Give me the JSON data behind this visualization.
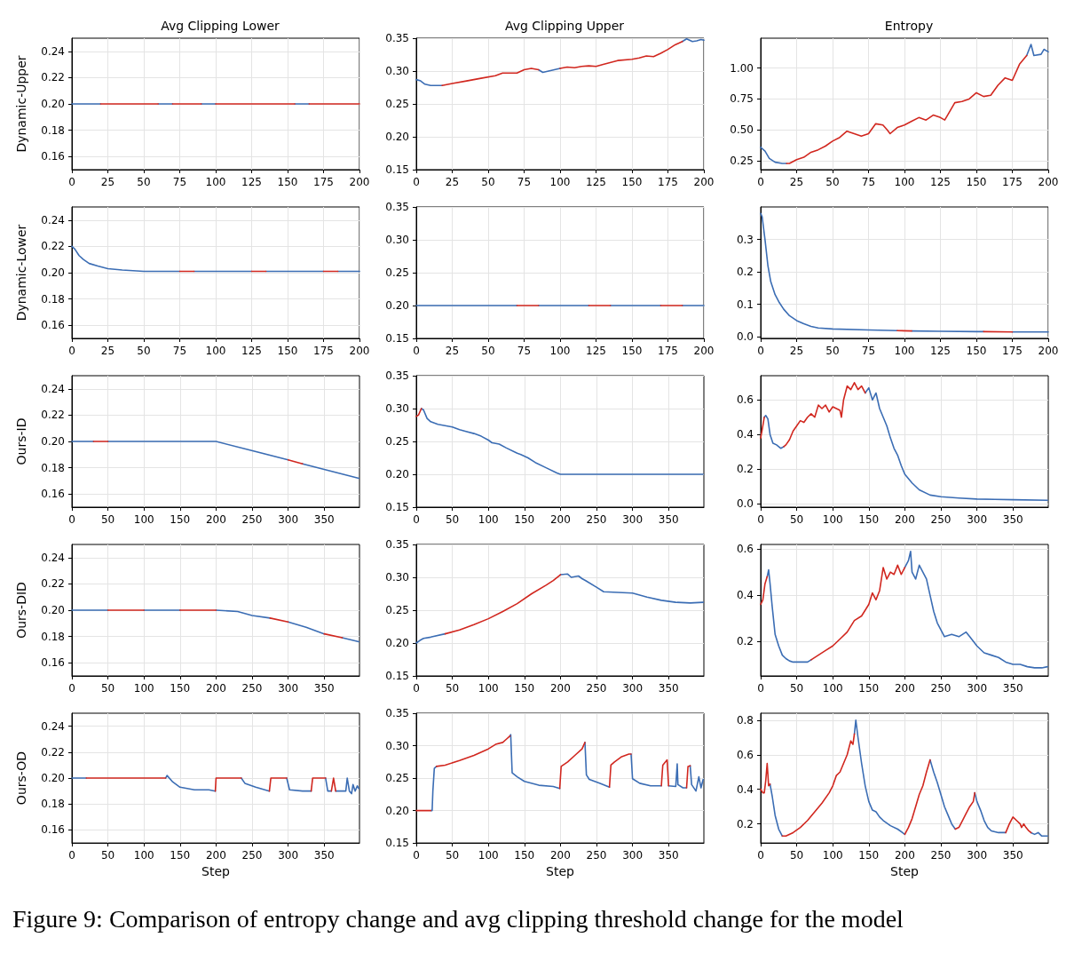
{
  "chart_data": [
    {
      "type": "line",
      "title": "Avg Clipping Lower",
      "ylabel": "Dynamic-Upper",
      "xlim": [
        0,
        200
      ],
      "xticks": [
        0,
        25,
        50,
        75,
        100,
        125,
        150,
        175,
        200
      ],
      "ylim": [
        0.15,
        0.25
      ],
      "yticks": [
        0.16,
        0.18,
        {
          "value": 0.2,
          "label": "0.20"
        },
        0.22,
        0.24
      ],
      "grid": true,
      "series": [
        {
          "color": "#3b6db4",
          "x": [
            0,
            20,
            40,
            60,
            70,
            80,
            90,
            100,
            130,
            155,
            165
          ],
          "values": [
            0.2,
            0.2,
            null,
            0.2,
            0.2,
            null,
            0.2,
            0.2,
            null,
            0.2,
            0.2
          ]
        },
        {
          "color": "#d1271f",
          "x": [
            20,
            60,
            65,
            70,
            90,
            95,
            100,
            155,
            160,
            165,
            200
          ],
          "values": [
            0.2,
            0.2,
            null,
            0.2,
            0.2,
            null,
            0.2,
            0.2,
            null,
            0.2,
            0.2
          ]
        }
      ]
    },
    {
      "type": "line",
      "title": "Avg Clipping Upper",
      "xlim": [
        0,
        200
      ],
      "xticks": [
        0,
        25,
        50,
        75,
        100,
        125,
        150,
        175,
        200
      ],
      "ylim": [
        0.15,
        0.35
      ],
      "yticks": [
        0.15,
        {
          "value": 0.2,
          "label": "0.20"
        },
        0.25,
        {
          "value": 0.3,
          "label": "0.30"
        },
        0.35
      ],
      "grid": true,
      "series": [
        {
          "color": "#3b6db4",
          "x": [
            0,
            3,
            6,
            10,
            15,
            18,
            40,
            85,
            88,
            92,
            100,
            140,
            185,
            188,
            192,
            195,
            198,
            200
          ],
          "values": [
            0.287,
            0.285,
            0.28,
            0.278,
            0.278,
            0.278,
            null,
            0.302,
            0.298,
            0.3,
            0.304,
            null,
            0.345,
            0.349,
            0.345,
            0.346,
            0.348,
            0.347
          ]
        },
        {
          "color": "#d1271f",
          "x": [
            18,
            25,
            35,
            45,
            55,
            60,
            65,
            70,
            75,
            80,
            85,
            92,
            100,
            105,
            110,
            115,
            120,
            125,
            130,
            140,
            150,
            155,
            160,
            165,
            170,
            175,
            180,
            185
          ],
          "values": [
            0.278,
            0.281,
            0.285,
            0.289,
            0.293,
            0.297,
            0.297,
            0.297,
            0.302,
            0.304,
            0.302,
            null,
            0.304,
            0.306,
            0.305,
            0.307,
            0.308,
            0.307,
            0.31,
            0.316,
            0.318,
            0.32,
            0.323,
            0.322,
            0.327,
            0.333,
            0.34,
            0.345
          ]
        }
      ]
    },
    {
      "type": "line",
      "title": "Entropy",
      "xlim": [
        0,
        200
      ],
      "xticks": [
        0,
        25,
        50,
        75,
        100,
        125,
        150,
        175,
        200
      ],
      "ylim": [
        0.18,
        1.24
      ],
      "yticks": [
        0.25,
        {
          "value": 0.5,
          "label": "0.50"
        },
        0.75,
        {
          "value": 1,
          "label": "1.00"
        }
      ],
      "grid": true,
      "series": [
        {
          "color": "#3b6db4",
          "x": [
            0,
            3,
            6,
            10,
            15,
            18,
            40,
            185,
            188,
            190,
            195,
            197,
            200
          ],
          "values": [
            0.36,
            0.33,
            0.27,
            0.24,
            0.23,
            0.23,
            null,
            1.1,
            1.19,
            1.1,
            1.11,
            1.15,
            1.13
          ]
        },
        {
          "color": "#d1271f",
          "x": [
            18,
            20,
            25,
            30,
            35,
            40,
            45,
            50,
            55,
            60,
            65,
            70,
            75,
            80,
            85,
            88,
            90,
            95,
            100,
            105,
            110,
            115,
            120,
            125,
            128,
            130,
            135,
            140,
            145,
            150,
            155,
            160,
            165,
            170,
            175,
            180,
            185
          ],
          "values": [
            0.23,
            0.23,
            0.26,
            0.28,
            0.32,
            0.34,
            0.37,
            0.41,
            0.44,
            0.49,
            0.47,
            0.45,
            0.47,
            0.55,
            0.54,
            0.5,
            0.47,
            0.52,
            0.54,
            0.57,
            0.6,
            0.58,
            0.62,
            0.6,
            0.58,
            0.62,
            0.72,
            0.73,
            0.75,
            0.8,
            0.77,
            0.78,
            0.86,
            0.92,
            0.9,
            1.03,
            1.1
          ]
        }
      ]
    },
    {
      "type": "line",
      "ylabel": "Dynamic-Lower",
      "xlim": [
        0,
        200
      ],
      "xticks": [
        0,
        25,
        50,
        75,
        100,
        125,
        150,
        175,
        200
      ],
      "ylim": [
        0.15,
        0.25
      ],
      "yticks": [
        0.16,
        0.18,
        {
          "value": 0.2,
          "label": "0.20"
        },
        0.22,
        0.24
      ],
      "grid": true,
      "series": [
        {
          "color": "#3b6db4",
          "x": [
            0,
            2,
            5,
            8,
            12,
            18,
            25,
            35,
            50,
            75,
            80,
            85,
            125,
            130,
            135,
            175,
            180,
            185,
            200
          ],
          "values": [
            0.22,
            0.218,
            0.213,
            0.21,
            0.207,
            0.205,
            0.203,
            0.202,
            0.201,
            0.201,
            null,
            0.201,
            0.201,
            null,
            0.201,
            0.201,
            null,
            0.201,
            0.201
          ]
        },
        {
          "color": "#d1271f",
          "x": [
            75,
            85,
            100,
            125,
            135,
            150,
            175,
            185
          ],
          "values": [
            0.201,
            0.201,
            null,
            0.201,
            0.201,
            null,
            0.201,
            0.201
          ]
        }
      ]
    },
    {
      "type": "line",
      "xlim": [
        0,
        200
      ],
      "xticks": [
        0,
        25,
        50,
        75,
        100,
        125,
        150,
        175,
        200
      ],
      "ylim": [
        0.15,
        0.35
      ],
      "yticks": [
        0.15,
        {
          "value": 0.2,
          "label": "0.20"
        },
        0.25,
        {
          "value": 0.3,
          "label": "0.30"
        },
        0.35
      ],
      "grid": true,
      "series": [
        {
          "color": "#3b6db4",
          "x": [
            0,
            70,
            75,
            85,
            120,
            125,
            135,
            170,
            175,
            185,
            200
          ],
          "values": [
            0.2,
            0.2,
            null,
            0.2,
            0.2,
            null,
            0.2,
            0.2,
            null,
            0.2,
            0.2
          ]
        },
        {
          "color": "#d1271f",
          "x": [
            70,
            85,
            100,
            120,
            135,
            150,
            170,
            185
          ],
          "values": [
            0.2,
            0.2,
            null,
            0.2,
            0.2,
            null,
            0.2,
            0.2
          ]
        }
      ]
    },
    {
      "type": "line",
      "xlim": [
        0,
        200
      ],
      "xticks": [
        0,
        25,
        50,
        75,
        100,
        125,
        150,
        175,
        200
      ],
      "ylim": [
        -0.005,
        0.4
      ],
      "yticks": [
        {
          "value": 0,
          "label": "0.0"
        },
        0.1,
        0.2,
        0.3
      ],
      "grid": true,
      "series": [
        {
          "color": "#3b6db4",
          "x": [
            0,
            1,
            3,
            5,
            7,
            10,
            13,
            16,
            20,
            25,
            30,
            35,
            40,
            50,
            75,
            95,
            100,
            105,
            125,
            150,
            155,
            165,
            175,
            200
          ],
          "values": [
            0.38,
            0.37,
            0.3,
            0.22,
            0.17,
            0.13,
            0.105,
            0.085,
            0.065,
            0.05,
            0.04,
            0.032,
            0.027,
            0.024,
            0.021,
            0.019,
            null,
            0.018,
            0.017,
            0.016,
            0.016,
            null,
            0.015,
            0.015
          ]
        },
        {
          "color": "#d1271f",
          "x": [
            95,
            105,
            130,
            155,
            175
          ],
          "values": [
            0.019,
            0.018,
            null,
            0.016,
            0.015
          ]
        }
      ]
    },
    {
      "type": "line",
      "ylabel": "Ours-ID",
      "xlim": [
        0,
        399
      ],
      "xticks": [
        0,
        50,
        100,
        150,
        200,
        250,
        300,
        350
      ],
      "ylim": [
        0.15,
        0.25
      ],
      "yticks": [
        0.16,
        0.18,
        {
          "value": 0.2,
          "label": "0.20"
        },
        0.22,
        0.24
      ],
      "grid": true,
      "series": [
        {
          "color": "#3b6db4",
          "x": [
            0,
            30,
            40,
            50,
            200,
            300,
            310,
            320,
            398
          ],
          "values": [
            0.2,
            0.2,
            null,
            0.2,
            0.2,
            0.186,
            null,
            0.183,
            0.172
          ]
        },
        {
          "color": "#d1271f",
          "x": [
            30,
            50,
            100,
            300,
            320
          ],
          "values": [
            0.2,
            0.2,
            null,
            0.186,
            0.183
          ]
        }
      ]
    },
    {
      "type": "line",
      "xlim": [
        0,
        399
      ],
      "xticks": [
        0,
        50,
        100,
        150,
        200,
        250,
        300,
        350
      ],
      "ylim": [
        0.15,
        0.35
      ],
      "yticks": [
        0.15,
        {
          "value": 0.2,
          "label": "0.20"
        },
        0.25,
        {
          "value": 0.3,
          "label": "0.30"
        },
        0.35
      ],
      "grid": true,
      "series": [
        {
          "color": "#3b6db4",
          "x": [
            7,
            10,
            15,
            20,
            30,
            40,
            45,
            50,
            60,
            70,
            80,
            90,
            100,
            105,
            115,
            125,
            140,
            145,
            155,
            165,
            180,
            195,
            200,
            300,
            398
          ],
          "values": [
            0.3,
            0.298,
            0.285,
            0.28,
            0.276,
            0.274,
            0.273,
            0.272,
            0.268,
            0.265,
            0.262,
            0.258,
            0.252,
            0.248,
            0.246,
            0.24,
            0.232,
            0.23,
            0.225,
            0.218,
            0.21,
            0.202,
            0.2,
            0.2,
            0.2
          ]
        },
        {
          "color": "#d1271f",
          "x": [
            0,
            3,
            7
          ],
          "values": [
            0.288,
            0.29,
            0.3
          ]
        }
      ]
    },
    {
      "type": "line",
      "xlim": [
        0,
        399
      ],
      "xticks": [
        0,
        50,
        100,
        150,
        200,
        250,
        300,
        350
      ],
      "ylim": [
        -0.02,
        0.74
      ],
      "yticks": [
        {
          "value": 0,
          "label": "0.0"
        },
        0.2,
        0.4,
        0.6
      ],
      "grid": true,
      "series": [
        {
          "color": "#3b6db4",
          "x": [
            5,
            7,
            10,
            13,
            17,
            22,
            28,
            32,
            80,
            145,
            150,
            155,
            160,
            165,
            170,
            175,
            180,
            185,
            190,
            195,
            200,
            210,
            220,
            235,
            250,
            275,
            300,
            325,
            350,
            398
          ],
          "values": [
            0.5,
            0.51,
            0.49,
            0.4,
            0.35,
            0.34,
            0.32,
            0.33,
            null,
            0.64,
            0.67,
            0.6,
            0.64,
            0.55,
            0.5,
            0.45,
            0.38,
            0.32,
            0.28,
            0.22,
            0.17,
            0.12,
            0.08,
            0.05,
            0.04,
            0.033,
            0.027,
            0.025,
            0.023,
            0.02
          ]
        },
        {
          "color": "#d1271f",
          "x": [
            0,
            3,
            5,
            20,
            32,
            35,
            40,
            45,
            50,
            55,
            60,
            65,
            70,
            75,
            80,
            85,
            90,
            95,
            100,
            105,
            110,
            112,
            115,
            120,
            125,
            130,
            135,
            140,
            145
          ],
          "values": [
            0.38,
            0.45,
            0.5,
            null,
            0.33,
            0.34,
            0.37,
            0.42,
            0.45,
            0.48,
            0.47,
            0.5,
            0.52,
            0.5,
            0.57,
            0.55,
            0.57,
            0.53,
            0.56,
            0.55,
            0.54,
            0.5,
            0.6,
            0.68,
            0.66,
            0.7,
            0.66,
            0.68,
            0.64
          ]
        }
      ]
    },
    {
      "type": "line",
      "ylabel": "Ours-DID",
      "xlim": [
        0,
        399
      ],
      "xticks": [
        0,
        50,
        100,
        150,
        200,
        250,
        300,
        350
      ],
      "ylim": [
        0.15,
        0.25
      ],
      "yticks": [
        0.16,
        0.18,
        {
          "value": 0.2,
          "label": "0.20"
        },
        0.22,
        0.24
      ],
      "grid": true,
      "series": [
        {
          "color": "#3b6db4",
          "x": [
            0,
            50,
            75,
            100,
            150,
            175,
            200,
            230,
            250,
            275,
            285,
            300,
            325,
            350,
            360,
            375,
            398
          ],
          "values": [
            0.2,
            0.2,
            null,
            0.2,
            0.2,
            null,
            0.2,
            0.199,
            0.196,
            0.194,
            null,
            0.191,
            0.187,
            0.182,
            null,
            0.179,
            0.176
          ]
        },
        {
          "color": "#d1271f",
          "x": [
            50,
            100,
            125,
            150,
            200,
            240,
            275,
            300,
            325,
            350,
            375
          ],
          "values": [
            0.2,
            0.2,
            null,
            0.2,
            0.2,
            null,
            0.194,
            0.191,
            null,
            0.182,
            0.179
          ]
        }
      ]
    },
    {
      "type": "line",
      "xlim": [
        0,
        399
      ],
      "xticks": [
        0,
        50,
        100,
        150,
        200,
        250,
        300,
        350
      ],
      "ylim": [
        0.15,
        0.35
      ],
      "yticks": [
        0.15,
        {
          "value": 0.2,
          "label": "0.20"
        },
        0.25,
        {
          "value": 0.3,
          "label": "0.30"
        },
        0.35
      ],
      "grid": true,
      "series": [
        {
          "color": "#3b6db4",
          "x": [
            0,
            5,
            10,
            20,
            40,
            100,
            200,
            210,
            215,
            225,
            230,
            235,
            250,
            260,
            280,
            300,
            320,
            340,
            360,
            380,
            398
          ],
          "values": [
            0.2,
            0.204,
            0.207,
            0.209,
            0.214,
            null,
            0.304,
            0.305,
            0.3,
            0.302,
            0.298,
            0.295,
            0.285,
            0.278,
            0.277,
            0.276,
            0.27,
            0.265,
            0.262,
            0.261,
            0.262
          ]
        },
        {
          "color": "#d1271f",
          "x": [
            40,
            60,
            80,
            100,
            120,
            140,
            160,
            180,
            190,
            200
          ],
          "values": [
            0.214,
            0.22,
            0.228,
            0.237,
            0.248,
            0.26,
            0.275,
            0.288,
            0.295,
            0.304
          ]
        }
      ]
    },
    {
      "type": "line",
      "xlim": [
        0,
        399
      ],
      "xticks": [
        0,
        50,
        100,
        150,
        200,
        250,
        300,
        350
      ],
      "ylim": [
        0.05,
        0.62
      ],
      "yticks": [
        0.2,
        0.4,
        0.6
      ],
      "grid": true,
      "series": [
        {
          "color": "#3b6db4",
          "x": [
            9,
            11,
            13,
            16,
            20,
            25,
            30,
            35,
            40,
            45,
            50,
            55,
            60,
            65,
            70,
            100,
            200,
            205,
            208,
            210,
            215,
            220,
            225,
            230,
            235,
            240,
            245,
            250,
            255,
            265,
            275,
            285,
            290,
            300,
            310,
            320,
            330,
            340,
            350,
            360,
            370,
            380,
            390,
            398
          ],
          "values": [
            0.48,
            0.51,
            0.45,
            0.35,
            0.23,
            0.18,
            0.14,
            0.125,
            0.115,
            0.11,
            0.11,
            0.11,
            0.11,
            0.11,
            0.12,
            null,
            0.52,
            0.55,
            0.59,
            0.5,
            0.47,
            0.53,
            0.5,
            0.47,
            0.4,
            0.33,
            0.28,
            0.25,
            0.22,
            0.23,
            0.22,
            0.24,
            0.22,
            0.18,
            0.15,
            0.14,
            0.13,
            0.11,
            0.1,
            0.1,
            0.09,
            0.085,
            0.085,
            0.09
          ]
        },
        {
          "color": "#d1271f",
          "x": [
            0,
            3,
            6,
            9,
            20,
            70,
            80,
            90,
            100,
            110,
            120,
            130,
            140,
            150,
            155,
            160,
            165,
            170,
            175,
            180,
            185,
            190,
            195,
            200
          ],
          "values": [
            0.36,
            0.38,
            0.45,
            0.48,
            null,
            0.12,
            0.14,
            0.16,
            0.18,
            0.21,
            0.24,
            0.29,
            0.31,
            0.36,
            0.41,
            0.38,
            0.42,
            0.52,
            0.47,
            0.5,
            0.49,
            0.53,
            0.49,
            0.52
          ]
        }
      ]
    },
    {
      "type": "line",
      "ylabel": "Ours-OD",
      "xlabel": "Step",
      "xlim": [
        0,
        399
      ],
      "xticks": [
        0,
        50,
        100,
        150,
        200,
        250,
        300,
        350
      ],
      "ylim": [
        0.15,
        0.25
      ],
      "yticks": [
        0.16,
        0.18,
        {
          "value": 0.2,
          "label": "0.20"
        },
        0.22,
        0.24
      ],
      "grid": true,
      "series": [
        {
          "color": "#3b6db4",
          "x": [
            0,
            20,
            70,
            130,
            132,
            140,
            150,
            170,
            190,
            199,
            215,
            235,
            240,
            255,
            274,
            285,
            298,
            302,
            320,
            332,
            340,
            352,
            355,
            360,
            364,
            366,
            375,
            380,
            382,
            385,
            388,
            390,
            393,
            396,
            398
          ],
          "values": [
            0.2,
            0.2,
            null,
            0.2,
            0.202,
            0.197,
            0.193,
            0.191,
            0.191,
            0.19,
            null,
            0.2,
            0.196,
            0.193,
            0.19,
            null,
            0.2,
            0.191,
            0.19,
            0.19,
            null,
            0.2,
            0.19,
            0.19,
            null,
            0.19,
            0.19,
            0.19,
            0.2,
            0.19,
            0.188,
            0.195,
            0.19,
            0.194,
            0.192
          ]
        },
        {
          "color": "#d1271f",
          "x": [
            20,
            130,
            165,
            199,
            200,
            235,
            255,
            274,
            276,
            298,
            315,
            332,
            334,
            352,
            358,
            360,
            363,
            366
          ],
          "values": [
            0.2,
            0.2,
            null,
            0.19,
            0.2,
            0.2,
            null,
            0.19,
            0.2,
            0.2,
            null,
            0.19,
            0.2,
            0.2,
            null,
            0.19,
            0.2,
            0.19
          ]
        }
      ]
    },
    {
      "type": "line",
      "xlabel": "Step",
      "xlim": [
        0,
        399
      ],
      "xticks": [
        0,
        50,
        100,
        150,
        200,
        250,
        300,
        350
      ],
      "ylim": [
        0.15,
        0.35
      ],
      "yticks": [
        0.15,
        {
          "value": 0.2,
          "label": "0.20"
        },
        0.25,
        {
          "value": 0.3,
          "label": "0.30"
        },
        0.35
      ],
      "grid": true,
      "series": [
        {
          "color": "#3b6db4",
          "x": [
            20,
            22,
            23,
            25,
            28,
            80,
            130,
            131,
            133,
            140,
            150,
            170,
            190,
            199,
            215,
            234,
            236,
            240,
            255,
            268,
            285,
            298,
            300,
            310,
            325,
            340,
            345,
            350,
            360,
            362,
            363,
            370,
            375,
            377,
            380,
            382,
            388,
            392,
            395,
            398
          ],
          "values": [
            0.2,
            0.2,
            0.23,
            0.265,
            0.268,
            null,
            0.315,
            0.317,
            0.258,
            0.252,
            0.245,
            0.239,
            0.237,
            0.234,
            null,
            0.305,
            0.255,
            0.248,
            0.242,
            0.236,
            null,
            0.287,
            0.249,
            0.242,
            0.238,
            0.238,
            null,
            0.238,
            0.237,
            0.272,
            0.24,
            0.235,
            0.235,
            null,
            0.269,
            0.24,
            0.23,
            0.252,
            0.235,
            0.248
          ]
        },
        {
          "color": "#d1271f",
          "x": [
            0,
            20,
            21,
            28,
            40,
            60,
            80,
            100,
            110,
            120,
            125,
            130,
            165,
            199,
            201,
            210,
            220,
            230,
            234,
            250,
            268,
            270,
            275,
            285,
            295,
            298,
            320,
            340,
            342,
            348,
            350,
            365,
            375,
            377,
            380
          ],
          "values": [
            0.2,
            0.2,
            null,
            0.268,
            0.27,
            0.277,
            0.285,
            0.295,
            0.302,
            0.305,
            0.31,
            0.315,
            null,
            0.234,
            0.268,
            0.275,
            0.285,
            0.295,
            0.305,
            null,
            0.236,
            0.27,
            0.275,
            0.283,
            0.287,
            0.287,
            null,
            0.238,
            0.27,
            0.278,
            0.238,
            null,
            0.235,
            0.268,
            0.269
          ]
        }
      ]
    },
    {
      "type": "line",
      "xlabel": "Step",
      "xlim": [
        0,
        399
      ],
      "xticks": [
        0,
        50,
        100,
        150,
        200,
        250,
        300,
        350
      ],
      "ylim": [
        0.09,
        0.84
      ],
      "yticks": [
        0.2,
        0.4,
        0.6,
        0.8
      ],
      "grid": true,
      "series": [
        {
          "color": "#3b6db4",
          "x": [
            13,
            16,
            20,
            25,
            30,
            80,
            130,
            132,
            135,
            140,
            145,
            150,
            155,
            160,
            165,
            170,
            180,
            190,
            200,
            215,
            235,
            240,
            245,
            250,
            255,
            260,
            265,
            270,
            285,
            297,
            300,
            305,
            310,
            315,
            320,
            330,
            340,
            350,
            375,
            380,
            385,
            390,
            398
          ],
          "values": [
            0.43,
            0.36,
            0.25,
            0.17,
            0.13,
            null,
            0.72,
            0.8,
            0.7,
            0.55,
            0.42,
            0.33,
            0.28,
            0.27,
            0.24,
            0.22,
            0.19,
            0.17,
            0.14,
            null,
            0.57,
            0.5,
            0.44,
            0.37,
            0.3,
            0.25,
            0.2,
            0.17,
            null,
            0.38,
            0.33,
            0.28,
            0.22,
            0.18,
            0.16,
            0.15,
            0.15,
            null,
            0.15,
            0.14,
            0.15,
            0.13,
            0.13
          ]
        },
        {
          "color": "#d1271f",
          "x": [
            0,
            3,
            5,
            7,
            9,
            11,
            13,
            20,
            30,
            35,
            45,
            55,
            65,
            75,
            85,
            95,
            100,
            105,
            110,
            115,
            120,
            125,
            128,
            130,
            160,
            200,
            205,
            210,
            215,
            220,
            225,
            230,
            235,
            250,
            270,
            275,
            280,
            285,
            290,
            295,
            297,
            320,
            340,
            345,
            350,
            355,
            360,
            362,
            365,
            368,
            372,
            375
          ],
          "values": [
            0.4,
            0.38,
            0.38,
            0.45,
            0.55,
            0.42,
            0.43,
            null,
            0.13,
            0.13,
            0.15,
            0.18,
            0.22,
            0.27,
            0.32,
            0.38,
            0.42,
            0.48,
            0.5,
            0.55,
            0.6,
            0.68,
            0.66,
            0.72,
            null,
            0.14,
            0.18,
            0.23,
            0.3,
            0.37,
            0.42,
            0.5,
            0.57,
            null,
            0.17,
            0.18,
            0.22,
            0.26,
            0.3,
            0.33,
            0.38,
            null,
            0.15,
            0.2,
            0.24,
            0.22,
            0.2,
            0.18,
            0.2,
            0.18,
            0.16,
            0.15
          ]
        }
      ]
    },
    {
      "type": "other",
      "annotations": [
        "Figure 9: Comparison of entropy change and avg clipping threshold change for the model"
      ]
    }
  ]
}
